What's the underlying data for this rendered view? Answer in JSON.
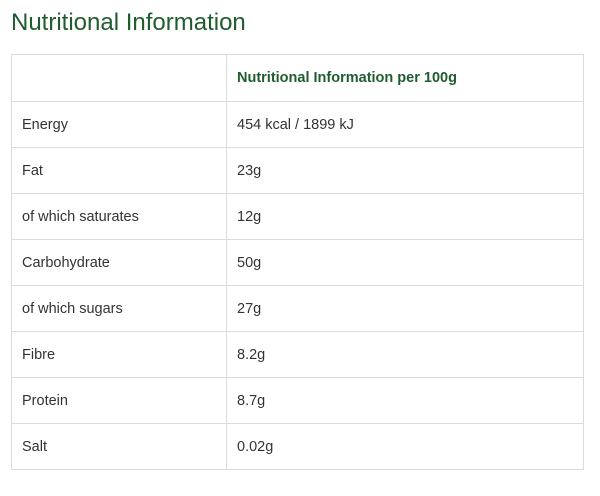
{
  "title": "Nutritional Information",
  "table": {
    "corner": "",
    "value_header": "Nutritional Information per 100g",
    "rows": [
      {
        "label": "Energy",
        "value": "454 kcal / 1899 kJ"
      },
      {
        "label": "Fat",
        "value": "23g"
      },
      {
        "label": "of which saturates",
        "value": "12g"
      },
      {
        "label": "Carbohydrate",
        "value": "50g"
      },
      {
        "label": "of which sugars",
        "value": "27g"
      },
      {
        "label": "Fibre",
        "value": "8.2g"
      },
      {
        "label": "Protein",
        "value": "8.7g"
      },
      {
        "label": "Salt",
        "value": "0.02g"
      }
    ]
  },
  "colors": {
    "accent_green": "#1f5c2e",
    "text": "#333333",
    "border": "#dcdcdc"
  }
}
